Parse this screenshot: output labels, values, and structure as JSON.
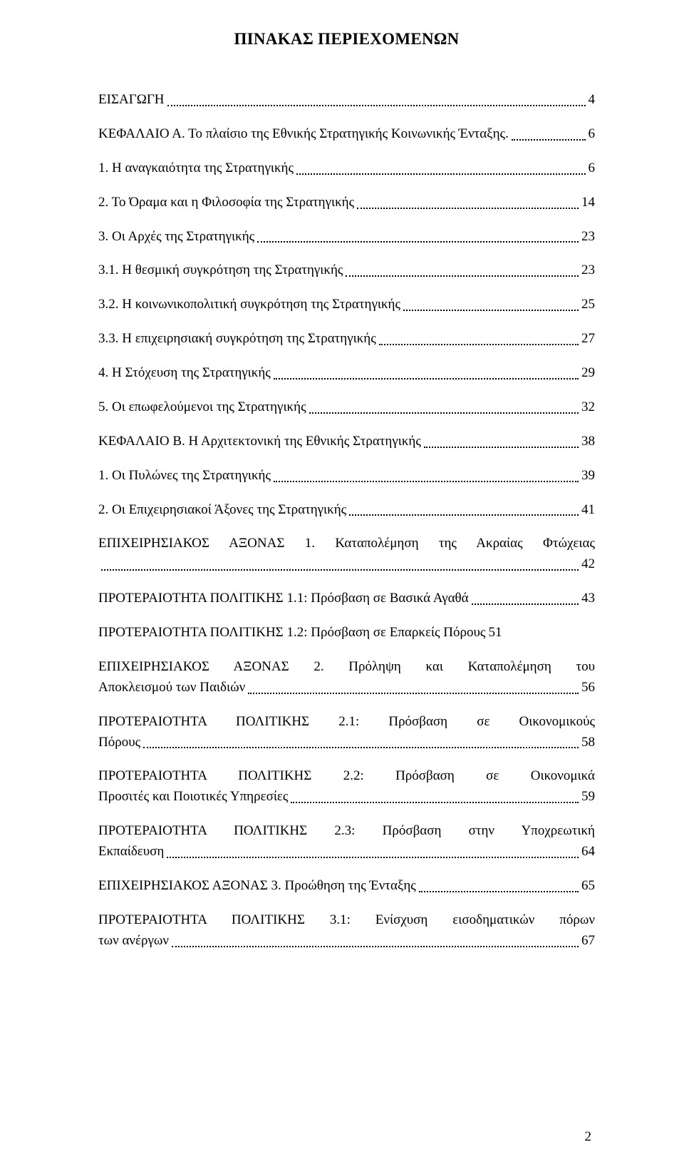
{
  "title": "ΠΙΝΑΚΑΣ ΠΕΡΙΕΧΟΜΕΝΩΝ",
  "page_number": "2",
  "entries": [
    {
      "text": "ΕΙΣΑΓΩΓΗ",
      "page": "4",
      "multi": false
    },
    {
      "text": "ΚΕΦΑΛΑΙΟ Α. Το πλαίσιο της Εθνικής Στρατηγικής Κοινωνικής Ένταξης.",
      "page": "6",
      "multi": false
    },
    {
      "text": "1. Η αναγκαιότητα της Στρατηγικής",
      "page": "6",
      "multi": false
    },
    {
      "text": "2. Το Όραμα και η Φιλοσοφία της Στρατηγικής",
      "page": "14",
      "multi": false
    },
    {
      "text": "3. Οι Αρχές της Στρατηγικής",
      "page": "23",
      "multi": false
    },
    {
      "text": "3.1. Η θεσμική συγκρότηση της Στρατηγικής",
      "page": "23",
      "multi": false
    },
    {
      "text": "3.2. Η κοινωνικοπολιτική συγκρότηση της Στρατηγικής",
      "page": "25",
      "multi": false
    },
    {
      "text": "3.3. Η επιχειρησιακή συγκρότηση της Στρατηγικής",
      "page": "27",
      "multi": false
    },
    {
      "text": "4. Η Στόχευση της Στρατηγικής",
      "page": "29",
      "multi": false
    },
    {
      "text": "5. Οι επωφελούμενοι της Στρατηγικής",
      "page": "32",
      "multi": false
    },
    {
      "text": "ΚΕΦΑΛΑΙΟ Β. Η Αρχιτεκτονική της Εθνικής Στρατηγικής",
      "page": "38",
      "multi": false
    },
    {
      "text": "1. Οι Πυλώνες της Στρατηγικής",
      "page": "39",
      "multi": false
    },
    {
      "text": "2. Οι Επιχειρησιακοί Άξονες της Στρατηγικής",
      "page": "41",
      "multi": false
    },
    {
      "first": "ΕΠΙΧΕΙΡΗΣΙΑΚΟΣ ΑΞΟΝΑΣ 1. Καταπολέμηση της Ακραίας Φτώχειας",
      "last": "",
      "page": "42",
      "multi": true
    },
    {
      "text": "ΠΡΟΤΕΡΑΙΟΤΗΤΑ ΠΟΛΙΤΙΚΗΣ 1.1: Πρόσβαση σε Βασικά Αγαθά",
      "page": "43",
      "multi": false
    },
    {
      "text": "ΠΡΟΤΕΡΑΙΟΤΗΤΑ ΠΟΛΙΤΙΚΗΣ 1.2: Πρόσβαση σε Επαρκείς Πόρους",
      "page": "51",
      "multi": false,
      "noleader": true
    },
    {
      "first": "ΕΠΙΧΕΙΡΗΣΙΑΚΟΣ ΑΞΟΝΑΣ 2. Πρόληψη και Καταπολέμηση του",
      "last": "Αποκλεισμού των Παιδιών",
      "page": "56",
      "multi": true
    },
    {
      "first": "ΠΡΟΤΕΡΑΙΟΤΗΤΑ ΠΟΛΙΤΙΚΗΣ 2.1: Πρόσβαση σε Οικονομικούς",
      "last": "Πόρους",
      "page": "58",
      "multi": true
    },
    {
      "first": "ΠΡΟΤΕΡΑΙΟΤΗΤΑ ΠΟΛΙΤΙΚΗΣ 2.2: Πρόσβαση σε Οικονομικά",
      "last": "Προσιτές και Ποιοτικές Υπηρεσίες",
      "page": "59",
      "multi": true
    },
    {
      "first": "ΠΡΟΤΕΡΑΙΟΤΗΤΑ ΠΟΛΙΤΙΚΗΣ 2.3: Πρόσβαση στην Υποχρεωτική",
      "last": "Εκπαίδευση",
      "page": "64",
      "multi": true
    },
    {
      "text": "ΕΠΙΧΕΙΡΗΣΙΑΚΟΣ ΑΞΟΝΑΣ 3. Προώθηση της Ένταξης",
      "page": "65",
      "multi": false
    },
    {
      "first": "ΠΡΟΤΕΡΑΙΟΤΗΤΑ ΠΟΛΙΤΙΚΗΣ 3.1: Ενίσχυση εισοδηματικών πόρων",
      "last": "των ανέργων",
      "page": "67",
      "multi": true
    }
  ]
}
